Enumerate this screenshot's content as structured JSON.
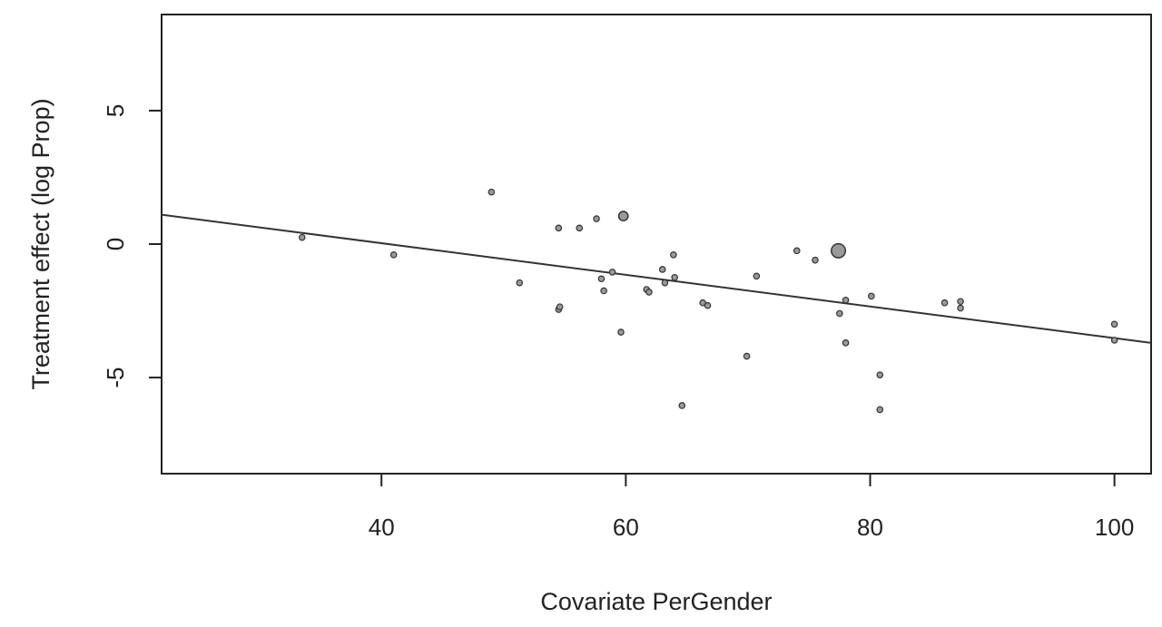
{
  "chart_data": {
    "type": "scatter",
    "title": "",
    "xlabel": "Covariate PerGender",
    "ylabel": "Treatment effect (log Prop)",
    "xlim": [
      22,
      103
    ],
    "ylim": [
      -8.6,
      8.6
    ],
    "x_ticks": [
      40,
      60,
      80,
      100
    ],
    "y_ticks": [
      -5,
      0,
      5
    ],
    "grid": false,
    "legend": "none",
    "point_fill": "#9a9a9a",
    "point_stroke": "#333333",
    "line_color": "#333333",
    "regression_line": {
      "x": [
        22,
        103
      ],
      "y": [
        1.1,
        -3.7
      ]
    },
    "points": [
      {
        "x": 33.5,
        "y": 0.25,
        "size": 1
      },
      {
        "x": 41.0,
        "y": -0.4,
        "size": 1
      },
      {
        "x": 49.0,
        "y": 1.95,
        "size": 1
      },
      {
        "x": 51.3,
        "y": -1.45,
        "size": 1
      },
      {
        "x": 54.5,
        "y": 0.6,
        "size": 1
      },
      {
        "x": 54.5,
        "y": -2.45,
        "size": 1
      },
      {
        "x": 54.6,
        "y": -2.35,
        "size": 1
      },
      {
        "x": 56.2,
        "y": 0.6,
        "size": 1
      },
      {
        "x": 57.6,
        "y": 0.95,
        "size": 1
      },
      {
        "x": 58.0,
        "y": -1.3,
        "size": 1
      },
      {
        "x": 58.2,
        "y": -1.75,
        "size": 1
      },
      {
        "x": 58.9,
        "y": -1.05,
        "size": 1
      },
      {
        "x": 59.6,
        "y": -3.3,
        "size": 1
      },
      {
        "x": 59.8,
        "y": 1.05,
        "size": 2
      },
      {
        "x": 61.7,
        "y": -1.7,
        "size": 1
      },
      {
        "x": 61.9,
        "y": -1.8,
        "size": 1
      },
      {
        "x": 63.0,
        "y": -0.95,
        "size": 1
      },
      {
        "x": 63.2,
        "y": -1.45,
        "size": 1
      },
      {
        "x": 63.9,
        "y": -0.4,
        "size": 1
      },
      {
        "x": 64.0,
        "y": -1.25,
        "size": 1
      },
      {
        "x": 64.6,
        "y": -6.05,
        "size": 1
      },
      {
        "x": 66.3,
        "y": -2.2,
        "size": 1
      },
      {
        "x": 66.7,
        "y": -2.3,
        "size": 1
      },
      {
        "x": 69.9,
        "y": -4.2,
        "size": 1
      },
      {
        "x": 70.7,
        "y": -1.2,
        "size": 1
      },
      {
        "x": 74.0,
        "y": -0.25,
        "size": 1
      },
      {
        "x": 75.5,
        "y": -0.6,
        "size": 1
      },
      {
        "x": 77.4,
        "y": -0.25,
        "size": 5
      },
      {
        "x": 77.5,
        "y": -2.6,
        "size": 1
      },
      {
        "x": 78.0,
        "y": -2.1,
        "size": 1
      },
      {
        "x": 78.0,
        "y": -3.7,
        "size": 1
      },
      {
        "x": 80.1,
        "y": -1.95,
        "size": 1
      },
      {
        "x": 80.8,
        "y": -4.9,
        "size": 1
      },
      {
        "x": 80.8,
        "y": -6.2,
        "size": 1
      },
      {
        "x": 86.1,
        "y": -2.2,
        "size": 1
      },
      {
        "x": 87.4,
        "y": -2.15,
        "size": 1
      },
      {
        "x": 87.4,
        "y": -2.4,
        "size": 1
      },
      {
        "x": 100.0,
        "y": -3.0,
        "size": 1
      },
      {
        "x": 100.0,
        "y": -3.6,
        "size": 1
      }
    ]
  }
}
